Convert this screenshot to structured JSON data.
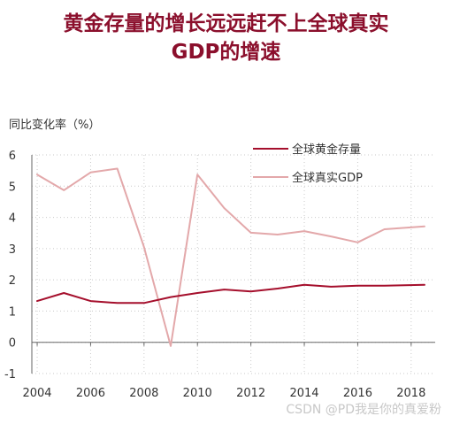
{
  "title_line1": "黄金存量的增长远远赶不上全球真实",
  "title_line2": "GDP的增速",
  "ylabel": "同比变化率（%）",
  "watermark": "CSDN @PD我是你的真爱粉",
  "chart_data": {
    "type": "line",
    "title": "黄金存量的增长远远赶不上全球真实GDP的增速",
    "ylabel": "同比变化率（%）",
    "xlabel": "",
    "ylim": [
      -1,
      6
    ],
    "yticks": [
      -1,
      0,
      1,
      2,
      3,
      4,
      5,
      6
    ],
    "xlim": [
      2003.8,
      2018.9
    ],
    "xticks": [
      2004,
      2006,
      2008,
      2010,
      2012,
      2014,
      2016,
      2018
    ],
    "xticklabels": [
      "2004",
      "2006",
      "2008",
      "2010",
      "2012",
      "2014",
      "2016",
      "2018"
    ],
    "grid": "dotted",
    "legend": "top-right",
    "series": [
      {
        "name": "全球黄金存量",
        "color": "#a50f2c",
        "x": [
          2004,
          2005,
          2006,
          2007,
          2008,
          2009,
          2010,
          2011,
          2012,
          2013,
          2014,
          2015,
          2016,
          2017,
          2018.5
        ],
        "y": [
          1.32,
          1.58,
          1.32,
          1.26,
          1.26,
          1.45,
          1.58,
          1.69,
          1.63,
          1.72,
          1.84,
          1.78,
          1.81,
          1.81,
          1.84
        ]
      },
      {
        "name": "全球真实GDP",
        "color": "#e3a8aa",
        "x": [
          2004,
          2005,
          2006,
          2007,
          2008,
          2009,
          2010,
          2011,
          2012,
          2013,
          2014,
          2015,
          2016,
          2017,
          2018.5
        ],
        "y": [
          5.37,
          4.87,
          5.44,
          5.56,
          3.05,
          -0.12,
          5.37,
          4.3,
          3.51,
          3.45,
          3.56,
          3.39,
          3.2,
          3.62,
          3.71
        ]
      }
    ]
  }
}
